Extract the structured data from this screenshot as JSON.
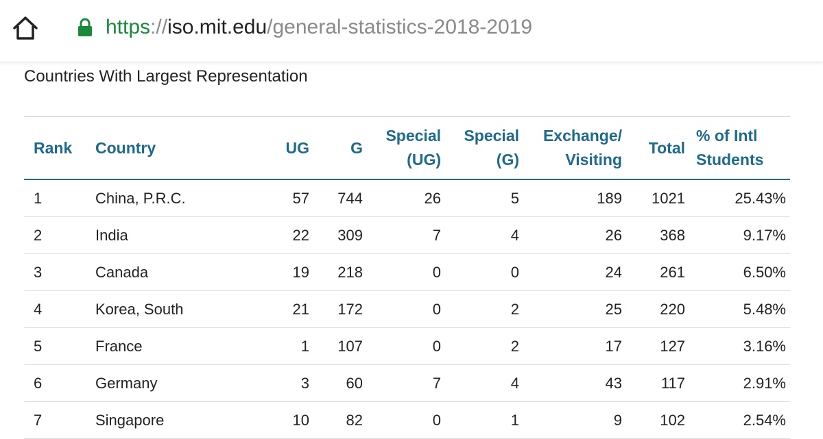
{
  "browser": {
    "url_scheme": "https",
    "url_separator": "://",
    "url_host": "iso.mit.edu",
    "url_path": "/general-statistics-2018-2019",
    "home_icon": "home-icon",
    "lock_icon": "lock-icon",
    "colors": {
      "secure": "#1a8a3a",
      "header_text": "#1c6a8c"
    }
  },
  "section": {
    "title": "Countries With Largest Representation"
  },
  "table": {
    "headers": {
      "rank": "Rank",
      "country": "Country",
      "ug": "UG",
      "g": "G",
      "special_ug_1": "Special",
      "special_ug_2": "(UG)",
      "special_g_1": "Special",
      "special_g_2": "(G)",
      "exchange_1": "Exchange/",
      "exchange_2": "Visiting",
      "total": "Total",
      "pct_1": "% of Intl",
      "pct_2": "Students"
    },
    "rows": [
      {
        "rank": "1",
        "country": "China, P.R.C.",
        "ug": "57",
        "g": "744",
        "special_ug": "26",
        "special_g": "5",
        "exchange": "189",
        "total": "1021",
        "pct": "25.43%"
      },
      {
        "rank": "2",
        "country": "India",
        "ug": "22",
        "g": "309",
        "special_ug": "7",
        "special_g": "4",
        "exchange": "26",
        "total": "368",
        "pct": "9.17%"
      },
      {
        "rank": "3",
        "country": "Canada",
        "ug": "19",
        "g": "218",
        "special_ug": "0",
        "special_g": "0",
        "exchange": "24",
        "total": "261",
        "pct": "6.50%"
      },
      {
        "rank": "4",
        "country": "Korea, South",
        "ug": "21",
        "g": "172",
        "special_ug": "0",
        "special_g": "2",
        "exchange": "25",
        "total": "220",
        "pct": "5.48%"
      },
      {
        "rank": "5",
        "country": "France",
        "ug": "1",
        "g": "107",
        "special_ug": "0",
        "special_g": "2",
        "exchange": "17",
        "total": "127",
        "pct": "3.16%"
      },
      {
        "rank": "6",
        "country": "Germany",
        "ug": "3",
        "g": "60",
        "special_ug": "7",
        "special_g": "4",
        "exchange": "43",
        "total": "117",
        "pct": "2.91%"
      },
      {
        "rank": "7",
        "country": "Singapore",
        "ug": "10",
        "g": "82",
        "special_ug": "0",
        "special_g": "1",
        "exchange": "9",
        "total": "102",
        "pct": "2.54%"
      }
    ]
  }
}
